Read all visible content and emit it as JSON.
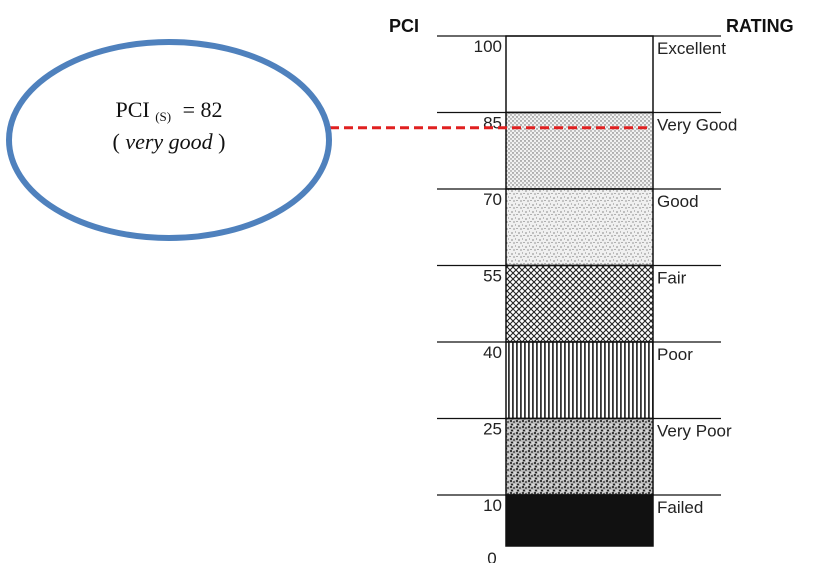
{
  "header": {
    "pci_label": "PCI",
    "rating_label": "RATING"
  },
  "scale": {
    "ticks": [
      "100",
      "85",
      "70",
      "55",
      "40",
      "25",
      "10",
      "0"
    ],
    "bands": [
      {
        "rating": "Excellent",
        "from": 100,
        "to": 85,
        "pattern": "blank"
      },
      {
        "rating": "Very Good",
        "from": 85,
        "to": 70,
        "pattern": "fine-dots"
      },
      {
        "rating": "Good",
        "from": 70,
        "to": 55,
        "pattern": "speckle"
      },
      {
        "rating": "Fair",
        "from": 55,
        "to": 40,
        "pattern": "crosshatch"
      },
      {
        "rating": "Poor",
        "from": 40,
        "to": 25,
        "pattern": "vertical-lines"
      },
      {
        "rating": "Very Poor",
        "from": 25,
        "to": 10,
        "pattern": "dense-speckle"
      },
      {
        "rating": "Failed",
        "from": 10,
        "to": 0,
        "pattern": "solid-black"
      }
    ]
  },
  "callout": {
    "line1_main": "PCI",
    "line1_sub": "(S)",
    "line1_value": "= 82",
    "line2_open": "(",
    "line2_italic": "very good",
    "line2_close": ")",
    "pci_value": 82,
    "ellipse_color": "#4f81bd",
    "marker_color": "#e02020"
  }
}
